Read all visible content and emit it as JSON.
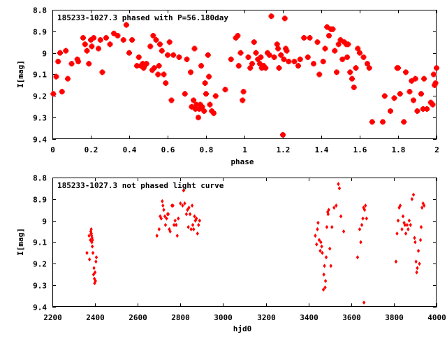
{
  "chart_data": [
    {
      "type": "scatter",
      "title": "185233-1027.3 phased with P=56.180day",
      "xlabel": "phase",
      "ylabel": "I[mag]",
      "xlim": [
        0,
        2
      ],
      "ylim": [
        9.4,
        8.8
      ],
      "y_inverted": true,
      "grid": false,
      "marker_color": "#ff0000",
      "xticks": [
        "0",
        "0.2",
        "0.4",
        "0.6",
        "0.8",
        "1",
        "1.2",
        "1.4",
        "1.6",
        "1.8",
        "2"
      ],
      "yticks": [
        "8.8",
        "8.9",
        "9",
        "9.1",
        "9.2",
        "9.3",
        "9.4"
      ],
      "points": [
        [
          0.005,
          9.19
        ],
        [
          0.02,
          9.11
        ],
        [
          0.03,
          9.04
        ],
        [
          0.04,
          9.0
        ],
        [
          0.05,
          9.18
        ],
        [
          0.07,
          8.99
        ],
        [
          0.08,
          9.12
        ],
        [
          0.1,
          9.05
        ],
        [
          0.13,
          9.03
        ],
        [
          0.135,
          9.04
        ],
        [
          0.16,
          8.93
        ],
        [
          0.17,
          8.96
        ],
        [
          0.18,
          8.99
        ],
        [
          0.19,
          9.05
        ],
        [
          0.2,
          8.94
        ],
        [
          0.205,
          8.97
        ],
        [
          0.215,
          8.93
        ],
        [
          0.24,
          8.98
        ],
        [
          0.25,
          8.94
        ],
        [
          0.26,
          9.09
        ],
        [
          0.28,
          8.93
        ],
        [
          0.3,
          8.96
        ],
        [
          0.32,
          8.91
        ],
        [
          0.34,
          8.92
        ],
        [
          0.37,
          8.94
        ],
        [
          0.385,
          8.87
        ],
        [
          0.4,
          9.0
        ],
        [
          0.415,
          8.94
        ],
        [
          0.44,
          9.06
        ],
        [
          0.45,
          9.02
        ],
        [
          0.46,
          9.06
        ],
        [
          0.47,
          9.05
        ],
        [
          0.475,
          9.07
        ],
        [
          0.48,
          9.06
        ],
        [
          0.49,
          9.05
        ],
        [
          0.51,
          8.97
        ],
        [
          0.52,
          9.08
        ],
        [
          0.525,
          8.92
        ],
        [
          0.53,
          9.07
        ],
        [
          0.54,
          8.94
        ],
        [
          0.55,
          9.1
        ],
        [
          0.555,
          9.06
        ],
        [
          0.56,
          8.96
        ],
        [
          0.57,
          8.99
        ],
        [
          0.58,
          9.1
        ],
        [
          0.59,
          9.14
        ],
        [
          0.6,
          9.01
        ],
        [
          0.61,
          8.95
        ],
        [
          0.62,
          9.22
        ],
        [
          0.63,
          9.01
        ],
        [
          0.66,
          9.02
        ],
        [
          0.69,
          9.19
        ],
        [
          0.7,
          9.03
        ],
        [
          0.72,
          9.09
        ],
        [
          0.725,
          9.25
        ],
        [
          0.735,
          9.22
        ],
        [
          0.74,
          8.98
        ],
        [
          0.745,
          9.26
        ],
        [
          0.75,
          9.24
        ],
        [
          0.76,
          9.3
        ],
        [
          0.765,
          9.26
        ],
        [
          0.77,
          9.24
        ],
        [
          0.775,
          9.06
        ],
        [
          0.78,
          9.25
        ],
        [
          0.79,
          9.27
        ],
        [
          0.795,
          9.14
        ],
        [
          0.8,
          9.19
        ],
        [
          0.81,
          9.01
        ],
        [
          0.815,
          9.11
        ],
        [
          0.82,
          9.24
        ],
        [
          0.83,
          9.27
        ],
        [
          0.84,
          9.28
        ],
        [
          0.85,
          9.2
        ],
        [
          0.9,
          9.17
        ],
        [
          0.93,
          9.03
        ],
        [
          0.955,
          8.93
        ],
        [
          0.965,
          8.92
        ],
        [
          0.97,
          9.06
        ],
        [
          0.98,
          9.0
        ],
        [
          0.99,
          9.22
        ],
        [
          0.995,
          9.18
        ],
        [
          1.02,
          9.02
        ],
        [
          1.03,
          9.07
        ],
        [
          1.04,
          9.05
        ],
        [
          1.05,
          8.95
        ],
        [
          1.06,
          9.0
        ],
        [
          1.07,
          9.03
        ],
        [
          1.08,
          9.05
        ],
        [
          1.085,
          9.02
        ],
        [
          1.09,
          9.07
        ],
        [
          1.1,
          9.06
        ],
        [
          1.11,
          9.07
        ],
        [
          1.12,
          9.0
        ],
        [
          1.13,
          9.01
        ],
        [
          1.14,
          8.83
        ],
        [
          1.155,
          9.02
        ],
        [
          1.17,
          8.96
        ],
        [
          1.175,
          8.98
        ],
        [
          1.18,
          9.07
        ],
        [
          1.19,
          9.01
        ],
        [
          1.2,
          9.38
        ],
        [
          1.205,
          9.03
        ],
        [
          1.21,
          8.84
        ],
        [
          1.215,
          8.98
        ],
        [
          1.22,
          8.99
        ],
        [
          1.23,
          9.04
        ],
        [
          1.26,
          9.04
        ],
        [
          1.28,
          9.06
        ],
        [
          1.29,
          9.03
        ],
        [
          1.31,
          8.93
        ],
        [
          1.33,
          9.02
        ],
        [
          1.34,
          8.93
        ],
        [
          1.36,
          9.05
        ],
        [
          1.38,
          8.95
        ],
        [
          1.39,
          9.1
        ],
        [
          1.41,
          9.04
        ],
        [
          1.42,
          8.98
        ],
        [
          1.43,
          8.88
        ],
        [
          1.44,
          8.92
        ],
        [
          1.45,
          8.89
        ],
        [
          1.46,
          8.89
        ],
        [
          1.47,
          8.99
        ],
        [
          1.48,
          9.09
        ],
        [
          1.49,
          8.96
        ],
        [
          1.5,
          8.94
        ],
        [
          1.51,
          9.03
        ],
        [
          1.52,
          8.95
        ],
        [
          1.53,
          8.96
        ],
        [
          1.535,
          9.02
        ],
        [
          1.54,
          8.96
        ],
        [
          1.55,
          9.09
        ],
        [
          1.56,
          9.12
        ],
        [
          1.57,
          9.16
        ],
        [
          1.58,
          9.07
        ],
        [
          1.59,
          8.98
        ],
        [
          1.6,
          9.0
        ],
        [
          1.62,
          9.02
        ],
        [
          1.64,
          9.05
        ],
        [
          1.65,
          9.07
        ],
        [
          1.665,
          9.32
        ],
        [
          1.72,
          9.32
        ],
        [
          1.73,
          9.2
        ],
        [
          1.76,
          9.27
        ],
        [
          1.78,
          9.21
        ],
        [
          1.795,
          9.07
        ],
        [
          1.8,
          9.07
        ],
        [
          1.81,
          9.19
        ],
        [
          1.83,
          9.32
        ],
        [
          1.84,
          9.09
        ],
        [
          1.86,
          9.18
        ],
        [
          1.87,
          9.13
        ],
        [
          1.88,
          9.22
        ],
        [
          1.89,
          9.12
        ],
        [
          1.9,
          9.27
        ],
        [
          1.92,
          9.19
        ],
        [
          1.93,
          9.26
        ],
        [
          1.935,
          9.12
        ],
        [
          1.95,
          9.26
        ],
        [
          1.97,
          9.23
        ],
        [
          1.98,
          9.24
        ],
        [
          1.985,
          9.1
        ],
        [
          1.99,
          9.15
        ],
        [
          1.995,
          9.14
        ],
        [
          2.0,
          9.07
        ]
      ]
    },
    {
      "type": "scatter",
      "title": "185233-1027.3 not phased light curve",
      "xlabel": "hjd0",
      "ylabel": "I[mag]",
      "xlim": [
        2200,
        4000
      ],
      "ylim": [
        9.4,
        8.8
      ],
      "y_inverted": true,
      "grid": false,
      "marker_color": "#ff0000",
      "xticks": [
        "2200",
        "2400",
        "2600",
        "2800",
        "3000",
        "3200",
        "3400",
        "3600",
        "3800",
        "4000"
      ],
      "yticks": [
        "8.8",
        "8.9",
        "9",
        "9.1",
        "9.2",
        "9.3",
        "9.4"
      ],
      "points": [
        [
          2362,
          9.15
        ],
        [
          2372,
          9.07
        ],
        [
          2374,
          9.18
        ],
        [
          2378,
          9.09
        ],
        [
          2380,
          9.05
        ],
        [
          2381,
          9.06
        ],
        [
          2382,
          9.04
        ],
        [
          2383,
          9.06
        ],
        [
          2384,
          9.07
        ],
        [
          2385,
          9.1
        ],
        [
          2386,
          9.08
        ],
        [
          2387,
          9.12
        ],
        [
          2388,
          9.09
        ],
        [
          2390,
          9.15
        ],
        [
          2393,
          9.25
        ],
        [
          2395,
          9.22
        ],
        [
          2397,
          9.27
        ],
        [
          2398,
          9.29
        ],
        [
          2400,
          9.24
        ],
        [
          2402,
          9.28
        ],
        [
          2404,
          9.19
        ],
        [
          2406,
          9.17
        ],
        [
          2690,
          9.07
        ],
        [
          2700,
          9.04
        ],
        [
          2705,
          8.98
        ],
        [
          2710,
          8.99
        ],
        [
          2715,
          8.91
        ],
        [
          2718,
          8.93
        ],
        [
          2722,
          8.95
        ],
        [
          2727,
          8.98
        ],
        [
          2730,
          9.02
        ],
        [
          2735,
          8.99
        ],
        [
          2740,
          8.97
        ],
        [
          2743,
          8.97
        ],
        [
          2748,
          9.04
        ],
        [
          2752,
          9.05
        ],
        [
          2760,
          8.93
        ],
        [
          2765,
          8.93
        ],
        [
          2770,
          9.02
        ],
        [
          2775,
          9.0
        ],
        [
          2780,
          9.02
        ],
        [
          2785,
          9.07
        ],
        [
          2790,
          8.99
        ],
        [
          2800,
          8.92
        ],
        [
          2810,
          8.93
        ],
        [
          2815,
          8.86
        ],
        [
          2820,
          8.92
        ],
        [
          2828,
          8.97
        ],
        [
          2833,
          8.95
        ],
        [
          2837,
          9.03
        ],
        [
          2840,
          8.94
        ],
        [
          2845,
          8.97
        ],
        [
          2850,
          9.04
        ],
        [
          2855,
          8.93
        ],
        [
          2858,
          9.02
        ],
        [
          2862,
          9.04
        ],
        [
          2866,
          8.98
        ],
        [
          2870,
          9.0
        ],
        [
          2875,
          8.99
        ],
        [
          2880,
          9.06
        ],
        [
          2885,
          9.02
        ],
        [
          2890,
          9.0
        ],
        [
          3432,
          9.07
        ],
        [
          3438,
          9.11
        ],
        [
          3442,
          9.04
        ],
        [
          3445,
          9.01
        ],
        [
          3450,
          9.09
        ],
        [
          3455,
          9.14
        ],
        [
          3458,
          9.1
        ],
        [
          3462,
          9.12
        ],
        [
          3465,
          9.15
        ],
        [
          3470,
          9.32
        ],
        [
          3472,
          9.25
        ],
        [
          3475,
          9.21
        ],
        [
          3478,
          9.31
        ],
        [
          3480,
          9.28
        ],
        [
          3483,
          9.17
        ],
        [
          3486,
          9.03
        ],
        [
          3490,
          8.96
        ],
        [
          3492,
          8.97
        ],
        [
          3495,
          8.95
        ],
        [
          3500,
          9.13
        ],
        [
          3505,
          9.21
        ],
        [
          3510,
          9.03
        ],
        [
          3520,
          8.94
        ],
        [
          3530,
          8.93
        ],
        [
          3540,
          8.83
        ],
        [
          3545,
          8.85
        ],
        [
          3552,
          8.98
        ],
        [
          3565,
          9.05
        ],
        [
          3630,
          9.17
        ],
        [
          3640,
          9.04
        ],
        [
          3645,
          9.1
        ],
        [
          3650,
          9.02
        ],
        [
          3655,
          8.99
        ],
        [
          3658,
          8.94
        ],
        [
          3660,
          9.38
        ],
        [
          3663,
          8.95
        ],
        [
          3667,
          8.93
        ],
        [
          3672,
          8.99
        ],
        [
          3810,
          9.19
        ],
        [
          3815,
          9.06
        ],
        [
          3820,
          9.0
        ],
        [
          3825,
          8.94
        ],
        [
          3830,
          8.93
        ],
        [
          3838,
          9.04
        ],
        [
          3843,
          8.98
        ],
        [
          3848,
          9.01
        ],
        [
          3852,
          9.02
        ],
        [
          3856,
          9.06
        ],
        [
          3862,
          9.02
        ],
        [
          3867,
          9.04
        ],
        [
          3872,
          9.0
        ],
        [
          3878,
          9.02
        ],
        [
          3885,
          8.9
        ],
        [
          3892,
          8.88
        ],
        [
          3897,
          9.08
        ],
        [
          3900,
          9.1
        ],
        [
          3904,
          9.19
        ],
        [
          3907,
          9.24
        ],
        [
          3910,
          9.22
        ],
        [
          3915,
          9.14
        ],
        [
          3920,
          9.2
        ],
        [
          3925,
          9.09
        ],
        [
          3928,
          9.03
        ],
        [
          3932,
          8.94
        ],
        [
          3937,
          8.92
        ],
        [
          3942,
          8.93
        ]
      ]
    }
  ]
}
